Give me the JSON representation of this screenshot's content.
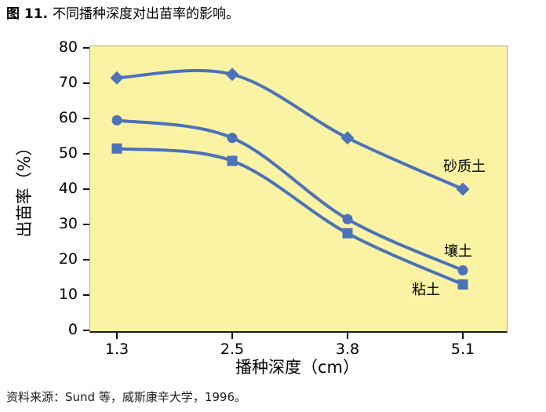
{
  "title": {
    "prefix": "图 11.",
    "text": "不同播种深度对出苗率的影响。"
  },
  "source": "资料来源：Sund 等，威斯康辛大学，1996。",
  "chart_data": {
    "type": "line",
    "title": "不同播种深度对出苗率的影响",
    "x_categories": [
      "1.3",
      "2.5",
      "3.8",
      "5.1"
    ],
    "xlabel": "播种深度（cm）",
    "ylabel": "出苗率（%）",
    "ylim": [
      0,
      80
    ],
    "y_ticks": [
      0,
      10,
      20,
      30,
      40,
      50,
      60,
      70,
      80
    ],
    "grid": false,
    "legend_position": "labels-inline-near-line-ends",
    "series": [
      {
        "name": "砂质土",
        "marker": "diamond",
        "values": [
          71.5,
          72.5,
          54.5,
          40
        ],
        "label_offset": [
          2,
          -30
        ]
      },
      {
        "name": "壤土",
        "marker": "circle",
        "values": [
          59.5,
          54.5,
          31.5,
          17
        ],
        "label_offset": [
          -6,
          -26
        ]
      },
      {
        "name": "粘土",
        "marker": "square",
        "values": [
          51.5,
          48,
          27.5,
          13
        ],
        "label_offset": [
          -47,
          5
        ]
      }
    ],
    "colors": {
      "line": "#4C72B8",
      "plot_bg": "#FAF3A4",
      "plot_border": "#A8A8A8",
      "axis_line": "#1A1A1A",
      "tick": "#111111",
      "text": "#000000"
    }
  }
}
